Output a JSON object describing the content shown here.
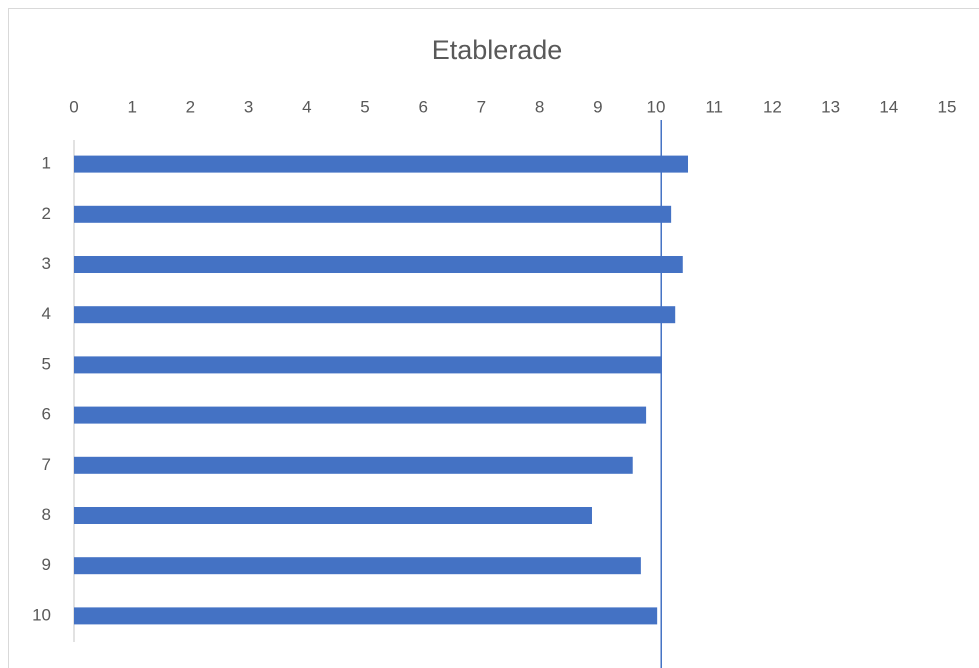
{
  "chart_data": {
    "type": "bar",
    "orientation": "horizontal",
    "title": "Etablerade",
    "categories": [
      "1",
      "2",
      "3",
      "4",
      "5",
      "6",
      "7",
      "8",
      "9",
      "10"
    ],
    "values": [
      10.55,
      10.26,
      10.46,
      10.33,
      10.1,
      9.83,
      9.6,
      8.9,
      9.74,
      10.02
    ],
    "color": "#4472c4",
    "xlim": [
      0,
      15
    ],
    "xticks": [
      0,
      1,
      2,
      3,
      4,
      5,
      6,
      7,
      8,
      9,
      10,
      11,
      12,
      13,
      14,
      15
    ],
    "reference_line": 10.09,
    "reference_color": "#4472c4",
    "grid": false
  }
}
